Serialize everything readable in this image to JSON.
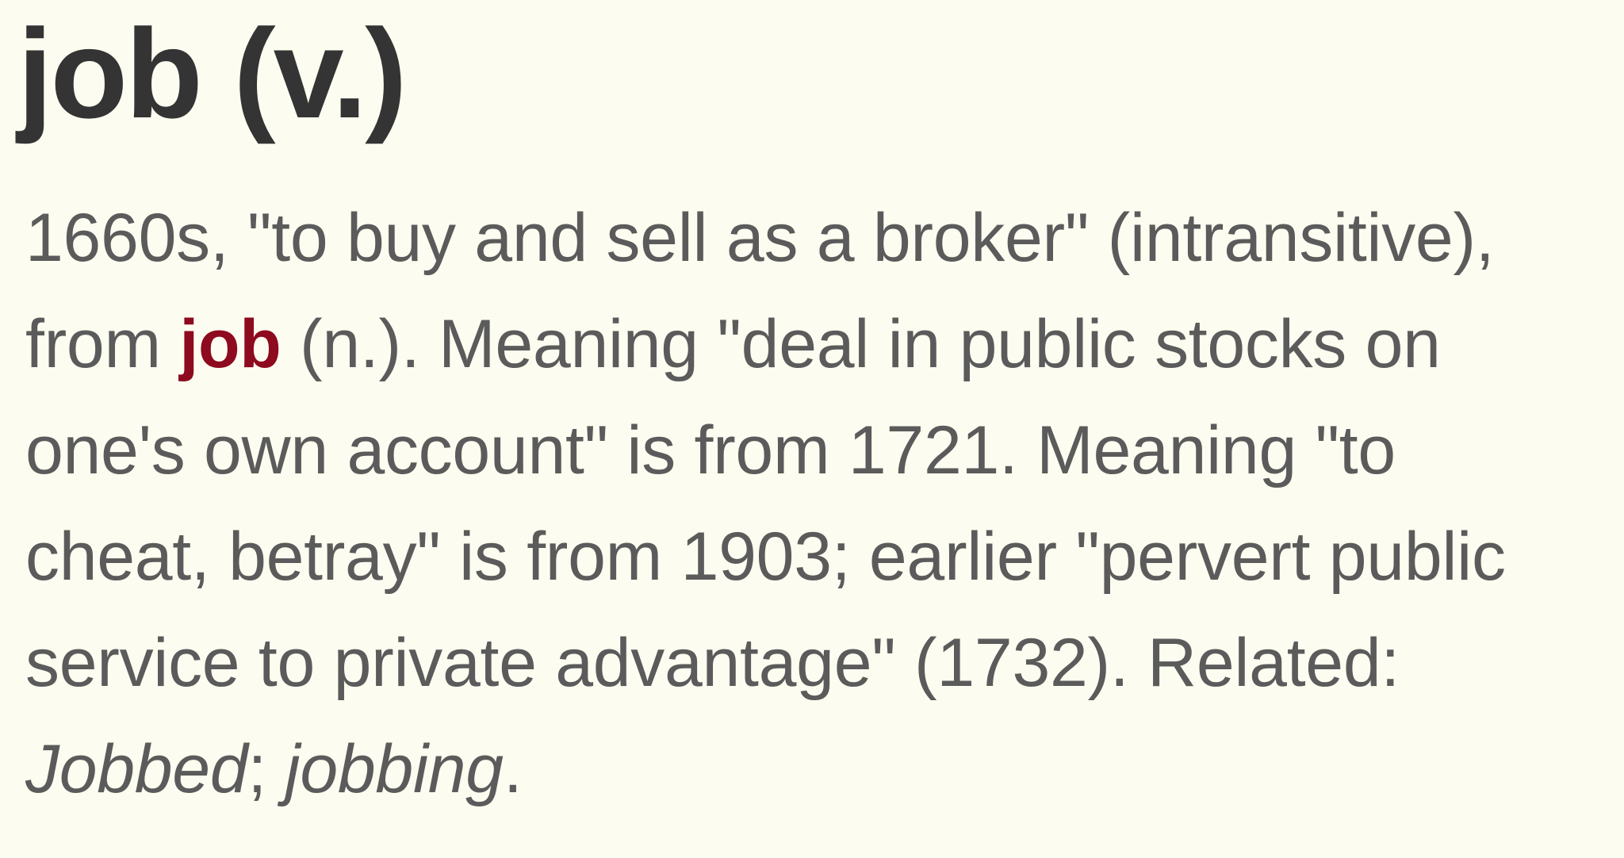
{
  "entry": {
    "heading": "job (v.)",
    "definition": {
      "line1": "1660s, \"to buy and sell as a broker\" (intransitive),",
      "line2_before_link": "from ",
      "link_text": "job",
      "line2_after_link": " (n.). Meaning \"deal in public stocks on",
      "line3": "one's own account\" is from 1721. Meaning \"to",
      "line4": "cheat, betray\" is from 1903; earlier \"pervert public",
      "line5": "service to private advantage\" (1732). Related:",
      "related_1": "Jobbed",
      "related_sep": "; ",
      "related_2": "jobbing",
      "end_punct": "."
    }
  },
  "colors": {
    "background": "#fdfcf0",
    "heading": "#343434",
    "body_text": "#5b5b5b",
    "link": "#8e0a1e"
  }
}
